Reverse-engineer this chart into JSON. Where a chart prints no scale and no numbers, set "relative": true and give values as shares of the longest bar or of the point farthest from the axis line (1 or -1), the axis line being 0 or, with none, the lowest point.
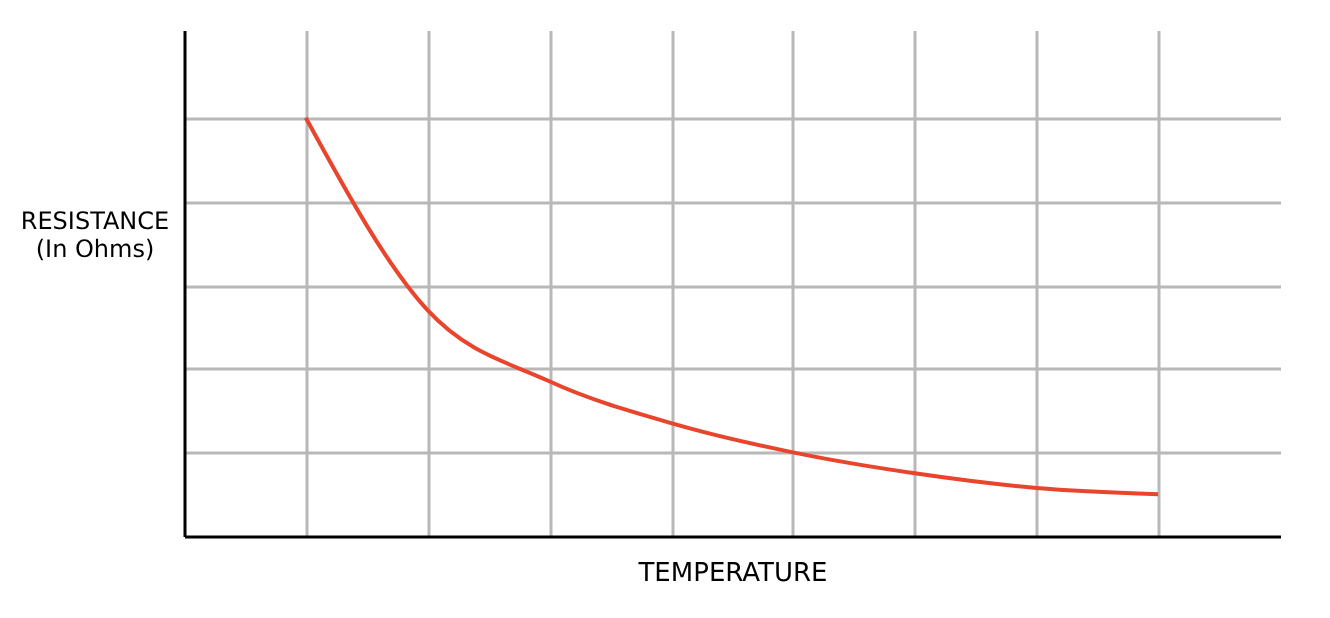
{
  "chart_data": {
    "type": "line",
    "relative": true,
    "xlabel": "TEMPERATURE",
    "ylabel": "RESISTANCE\n(In Ohms)",
    "categories": [
      null,
      null,
      null,
      null,
      null,
      null,
      null,
      null
    ],
    "series": [
      {
        "color": "#e8452c",
        "values": [
          1.0,
          0.54,
          0.37,
          0.27,
          0.2,
          0.15,
          0.115,
          0.1
        ]
      }
    ],
    "grid": true,
    "marker": "none",
    "line_style": "solid",
    "tick_labels": false
  }
}
